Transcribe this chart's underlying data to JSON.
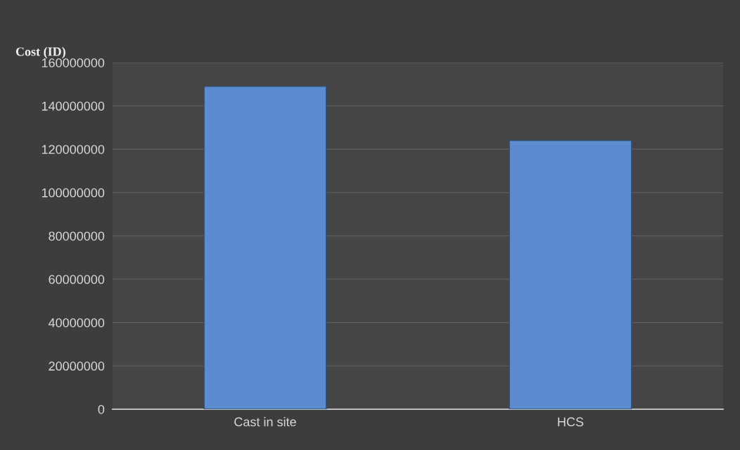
{
  "chart_data": {
    "type": "bar",
    "ylabel": "Cost (ID)",
    "categories": [
      "Cast in site",
      "HCS"
    ],
    "values": [
      149000000,
      124000000
    ],
    "color": "#5b8cd0",
    "ylim": [
      0,
      160000000
    ],
    "yticks": [
      0,
      20000000,
      40000000,
      60000000,
      80000000,
      100000000,
      120000000,
      140000000,
      160000000
    ],
    "grid": "y"
  }
}
